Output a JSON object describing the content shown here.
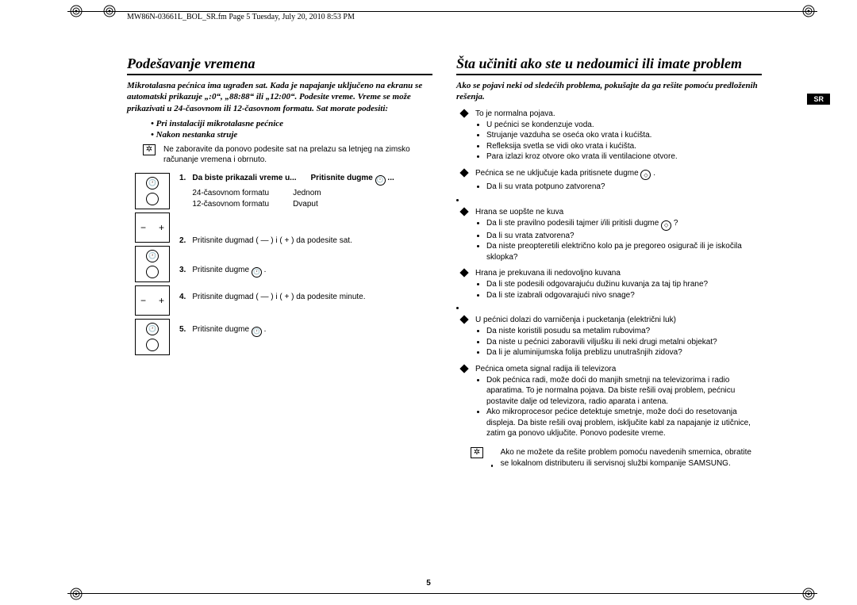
{
  "header": {
    "text": "MW86N-03661L_BOL_SR.fm  Page 5  Tuesday, July 20, 2010  8:53 PM",
    "icons": [
      "swirl-left",
      "swirl-right"
    ]
  },
  "badge": "SR",
  "page_number": "5",
  "left": {
    "title": "Podešavanje vremena",
    "intro": "Mikrotalasna pećnica ima ugrađen sat. Kada je napajanje uključeno na ekranu se automatski prikazuje „:0“, „88:88“ ili „12:00“. Podesite vreme. Vreme se može prikazivati u 24-časovnom ili 12-časovnom formatu. Sat morate podesiti:",
    "subs": [
      "Pri instalaciji mikrotalasne pećnice",
      "Nakon nestanka struje"
    ],
    "note": "Ne zaboravite da ponovo podesite sat na prelazu sa letnjeg na zimsko računanje vremena i obrnuto.",
    "steps": {
      "s1": {
        "label_l": "Da biste prikazali vreme u...",
        "label_r": "Pritisnite dugme",
        "rows_l": [
          "24-časovnom formatu",
          "12-časovnom formatu"
        ],
        "rows_r": [
          "Jednom",
          "Dvaput"
        ]
      },
      "s2": "Pritisnite dugmad ( — ) i ( + ) da podesite sat.",
      "s3": "Pritisnite dugme",
      "s4": "Pritisnite dugmad ( — ) i ( + ) da podesite minute.",
      "s5": "Pritisnite dugme"
    }
  },
  "right": {
    "title": "Šta učiniti ako ste u nedoumici ili imate problem",
    "intro": "Ako se pojavi neki od sledećih problema, pokušajte da ga rešite pomoću predloženih rešenja.",
    "groups": [
      {
        "head": "To je normalna pojava.",
        "items": [
          "U pećnici se kondenzuje voda.",
          "Strujanje vazduha se oseća oko vrata i kućišta.",
          "Refleksija svetla se vidi oko vrata i kućišta.",
          "Para izlazi kroz otvore oko vrata ili ventilacione otvore."
        ]
      },
      {
        "head": "Pećnica se ne uključuje kada pritisnete dugme",
        "items": [
          "Da li su vrata potpuno zatvorena?"
        ]
      },
      {
        "head": "Hrana se uopšte ne kuva",
        "items": [
          "Da li ste pravilno podesili tajmer i/ili pritisli dugme",
          "Da li su vrata zatvorena?",
          "Da niste preopteretili električno kolo pa je pregoreo osigurač ili je iskočila sklopka?"
        ]
      },
      {
        "head": "Hrana je prekuvana ili nedovoljno kuvana",
        "items": [
          "Da li ste podesili odgovarajuću dužinu kuvanja za taj tip hrane?",
          "Da li ste izabrali odgovarajući nivo snage?"
        ]
      },
      {
        "head": "U pećnici dolazi do varničenja i pucketanja (električni luk)",
        "items": [
          "Da niste koristili posudu sa metalim rubovima?",
          "Da niste u pećnici zaboravili viljušku ili neki drugi metalni objekat?",
          "Da li je aluminijumska folija preblizu unutrašnjih zidova?"
        ]
      },
      {
        "head": "Pećnica ometa signal radija ili televizora",
        "items": [
          "Dok pećnica radi, može doći do manjih smetnji na televizorima i radio aparatima. To je normalna pojava. Da biste rešili ovaj problem, pećnicu postavite dalje od televizora, radio aparata i antena.",
          "Ako mikroprocesor pećice detektuje smetnje, može doći do resetovanja displeja. Da biste rešili ovaj problem, isključite kabl za napajanje iz utičnice, zatim ga ponovo uključite. Ponovo podesite vreme."
        ]
      }
    ],
    "final": "Ako ne možete da rešite problem pomoću navedenih smernica, obratite se lokalnom distributeru ili servisnoj službi kompanije SAMSUNG."
  }
}
